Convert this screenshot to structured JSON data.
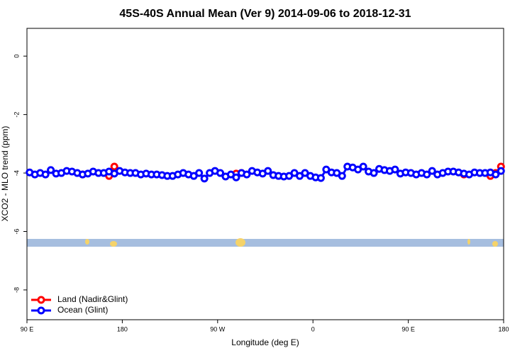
{
  "chart_data": {
    "type": "line",
    "title": "45S-40S Annual Mean (Ver 9)   2014-09-06 to 2018-12-31",
    "xlabel": "Longitude (deg E)",
    "ylabel": "XCO2 - MLO trend (ppm)",
    "x": [
      92.5,
      97.5,
      102.5,
      107.5,
      112.5,
      117.5,
      122.5,
      127.5,
      132.5,
      137.5,
      142.5,
      147.5,
      152.5,
      157.5,
      162.5,
      167.5,
      172.5,
      177.5,
      182.5,
      187.5,
      192.5,
      197.5,
      202.5,
      207.5,
      212.5,
      217.5,
      222.5,
      227.5,
      232.5,
      237.5,
      242.5,
      247.5,
      252.5,
      257.5,
      262.5,
      267.5,
      272.5,
      277.5,
      282.5,
      287.5,
      292.5,
      297.5,
      302.5,
      307.5,
      312.5,
      317.5,
      322.5,
      327.5,
      332.5,
      337.5,
      342.5,
      347.5,
      352.5,
      357.5,
      362.5,
      367.5,
      372.5,
      377.5,
      382.5,
      387.5,
      392.5,
      397.5,
      402.5,
      407.5,
      412.5,
      417.5,
      422.5,
      427.5,
      432.5,
      437.5,
      442.5,
      447.5,
      452.5,
      457.5,
      462.5,
      467.5,
      472.5,
      477.5,
      482.5,
      487.5,
      492.5,
      497.5,
      502.5,
      507.5,
      512.5,
      517.5,
      522.5,
      527.5,
      532.5,
      537.5
    ],
    "series": [
      {
        "name": "Land (Nadir&Glint)",
        "color": "#ff0000",
        "values": [
          null,
          null,
          null,
          null,
          null,
          null,
          null,
          null,
          null,
          null,
          -4.05,
          null,
          null,
          null,
          null,
          -4.1,
          -3.78,
          null,
          null,
          null,
          null,
          null,
          null,
          null,
          null,
          null,
          null,
          null,
          null,
          null,
          null,
          null,
          null,
          null,
          null,
          null,
          null,
          null,
          null,
          -4.02,
          -4.0,
          null,
          null,
          null,
          null,
          null,
          null,
          null,
          null,
          null,
          null,
          null,
          null,
          null,
          null,
          null,
          null,
          null,
          null,
          null,
          null,
          null,
          null,
          null,
          null,
          null,
          null,
          null,
          null,
          null,
          null,
          null,
          null,
          null,
          null,
          null,
          null,
          null,
          null,
          null,
          null,
          null,
          -4.05,
          null,
          null,
          null,
          null,
          -4.1,
          -4.0,
          -3.78
        ]
      },
      {
        "name": "Ocean (Glint)",
        "color": "#0000ff",
        "values": [
          -3.98,
          -4.05,
          -4.0,
          -4.05,
          -3.9,
          -4.02,
          -4.0,
          -3.93,
          -3.95,
          -4.0,
          -4.05,
          -4.02,
          -3.95,
          -4.0,
          -4.0,
          -3.95,
          -4.02,
          -3.93,
          -3.98,
          -4.0,
          -4.0,
          -4.05,
          -4.02,
          -4.05,
          -4.05,
          -4.07,
          -4.1,
          -4.1,
          -4.05,
          -4.0,
          -4.05,
          -4.1,
          -4.0,
          -4.19,
          -4.0,
          -3.93,
          -4.0,
          -4.12,
          -4.05,
          -4.15,
          -4.0,
          -4.05,
          -3.93,
          -3.98,
          -4.02,
          -3.93,
          -4.07,
          -4.1,
          -4.12,
          -4.1,
          -4.0,
          -4.1,
          -4.0,
          -4.1,
          -4.15,
          -4.17,
          -3.88,
          -3.98,
          -4.0,
          -4.1,
          -3.78,
          -3.81,
          -3.88,
          -3.78,
          -3.95,
          -4.0,
          -3.86,
          -3.9,
          -3.93,
          -3.88,
          -4.02,
          -3.98,
          -4.0,
          -4.05,
          -4.0,
          -4.05,
          -3.93,
          -4.05,
          -4.0,
          -3.95,
          -3.95,
          -3.98,
          -4.02,
          -4.05,
          -3.98,
          -4.0,
          -4.0,
          -3.98,
          -4.05,
          -3.93
        ]
      }
    ],
    "xlim": [
      90,
      540
    ],
    "xticks": [
      {
        "value": 90,
        "label": "90 E"
      },
      {
        "value": 180,
        "label": "180"
      },
      {
        "value": 270,
        "label": "90 W"
      },
      {
        "value": 360,
        "label": "0"
      },
      {
        "value": 450,
        "label": "90 E"
      },
      {
        "value": 540,
        "label": "180"
      }
    ],
    "ylim": [
      -9.02,
      0.95
    ],
    "yticks": [
      0,
      -2,
      -4,
      -6,
      -8
    ],
    "legend": "lower left"
  }
}
